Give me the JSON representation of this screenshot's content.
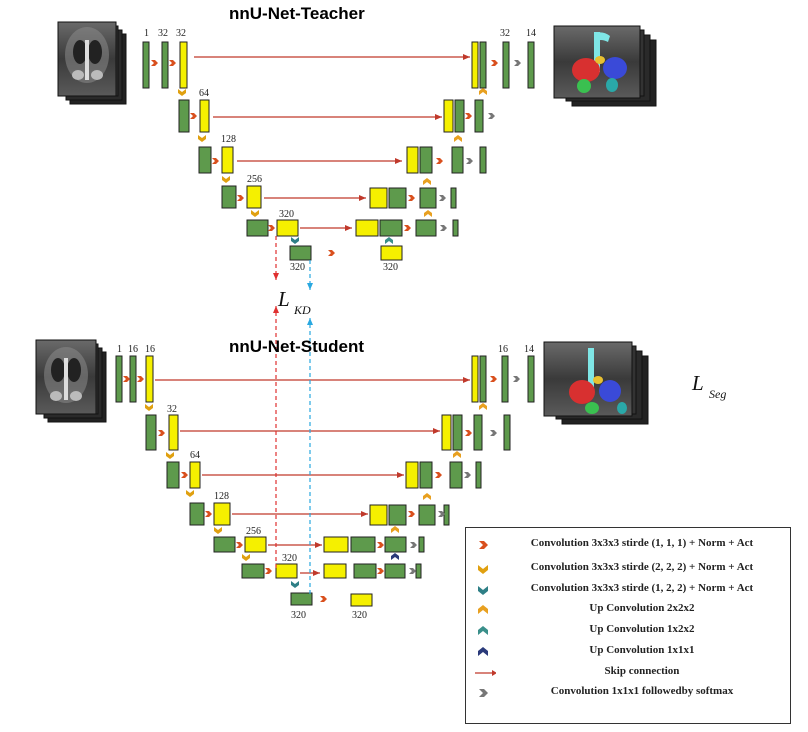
{
  "teacher": {
    "title": "nnU-Net-Teacher",
    "channels": {
      "in": "1",
      "c1": "32",
      "c1b": "32",
      "c2": "64",
      "c3": "128",
      "c4": "256",
      "c5": "320",
      "bottleneck": "320",
      "dec1": "32",
      "out": "14",
      "dec5": "320"
    }
  },
  "student": {
    "title": "nnU-Net-Student",
    "channels": {
      "in": "1",
      "c1": "16",
      "c1b": "16",
      "c2": "32",
      "c3": "64",
      "c4": "128",
      "c5": "256",
      "c6": "320",
      "bottleneck": "320",
      "dec1": "16",
      "out": "14",
      "dec6": "320"
    }
  },
  "loss_kd": {
    "symbol": "L",
    "subscript": "KD"
  },
  "loss_seg": {
    "symbol": "L",
    "subscript": "Seg"
  },
  "legend": {
    "items": [
      {
        "icon": "conv-stride-111-icon",
        "label": "Convolution 3x3x3 stirde (1, 1, 1)  + Norm + Act"
      },
      {
        "icon": "conv-stride-222-icon",
        "label": "Convolution 3x3x3 stirde (2, 2, 2) + Norm + Act"
      },
      {
        "icon": "conv-stride-122-icon",
        "label": "Convolution 3x3x3 stirde (1, 2, 2) + Norm + Act"
      },
      {
        "icon": "upconv-222-icon",
        "label": "Up Convolution 2x2x2"
      },
      {
        "icon": "upconv-122-icon",
        "label": "Up Convolution 1x2x2"
      },
      {
        "icon": "upconv-111-icon",
        "label": "Up Convolution 1x1x1"
      },
      {
        "icon": "skip-connection-icon",
        "label": "Skip connection"
      },
      {
        "icon": "conv-softmax-icon",
        "label": "Convolution 1x1x1 followedby softmax"
      }
    ]
  },
  "colors": {
    "encoder_block": "#5e9a4c",
    "feature_block": "#f5f000",
    "skip_arrow": "#c0392b",
    "kd_red": "#e03030",
    "kd_blue": "#29a8e0",
    "conv111": "#d9501e",
    "conv222": "#e0a010",
    "conv122": "#2e7f86",
    "up222": "#e8a020",
    "up122": "#3a8f8a",
    "up111": "#2a3a7a",
    "softmax": "#777777"
  }
}
